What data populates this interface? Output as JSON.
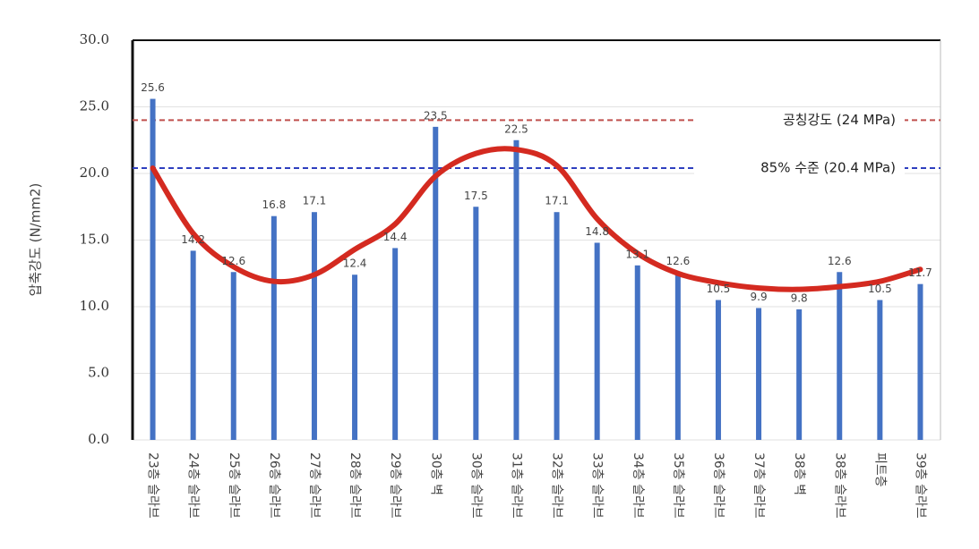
{
  "chart_data": {
    "type": "bar",
    "y_label": "압축강도 (N/mm2)",
    "categories": [
      "23층 슬라브",
      "24층 슬라브",
      "25층 슬라브",
      "26층 슬라브",
      "27층 슬라브",
      "28층 슬라브",
      "29층 슬라브",
      "30층 벽",
      "30층 슬라브",
      "31층 슬라브",
      "32층 슬라브",
      "33층 슬라브",
      "34층 슬라브",
      "35층 슬라브",
      "36층 슬라브",
      "37층 슬라브",
      "38층 벽",
      "38층 슬라브",
      "피트층",
      "39층 슬라브"
    ],
    "values": [
      25.6,
      14.2,
      12.6,
      16.8,
      17.1,
      12.4,
      14.4,
      23.5,
      17.5,
      22.5,
      17.1,
      14.8,
      13.1,
      12.6,
      10.5,
      9.9,
      9.8,
      12.6,
      10.5,
      11.7
    ],
    "color": "#4472c4",
    "trend": {
      "color": "#d42a20",
      "values": [
        20.4,
        15.5,
        13.0,
        11.9,
        12.4,
        14.3,
        16.2,
        19.8,
        21.5,
        21.8,
        20.6,
        16.6,
        14.0,
        12.5,
        11.8,
        11.4,
        11.3,
        11.5,
        11.9,
        12.8
      ]
    },
    "reference_lines": [
      {
        "value": 24,
        "label": "공칭강도 (24 MPa)",
        "color": "#c0504d"
      },
      {
        "value": 20.4,
        "label": "85% 수준 (20.4 MPa)",
        "color": "#2e3fbf"
      }
    ],
    "ylim": [
      0,
      30
    ],
    "yticks": [
      {
        "value": 0,
        "label": "0.0"
      },
      {
        "value": 5,
        "label": "5.0"
      },
      {
        "value": 10,
        "label": "10.0"
      },
      {
        "value": 15,
        "label": "15.0"
      },
      {
        "value": 20,
        "label": "20.0"
      },
      {
        "value": 25,
        "label": "25.0"
      },
      {
        "value": 30,
        "label": "30.0"
      }
    ],
    "grid": true
  }
}
